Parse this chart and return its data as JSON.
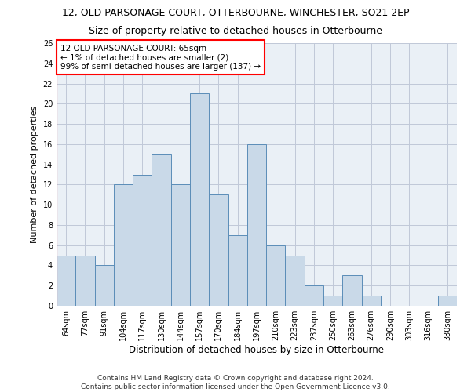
{
  "title1": "12, OLD PARSONAGE COURT, OTTERBOURNE, WINCHESTER, SO21 2EP",
  "title2": "Size of property relative to detached houses in Otterbourne",
  "xlabel": "Distribution of detached houses by size in Otterbourne",
  "ylabel": "Number of detached properties",
  "footer1": "Contains HM Land Registry data © Crown copyright and database right 2024.",
  "footer2": "Contains public sector information licensed under the Open Government Licence v3.0.",
  "annotation_line1": "12 OLD PARSONAGE COURT: 65sqm",
  "annotation_line2": "← 1% of detached houses are smaller (2)",
  "annotation_line3": "99% of semi-detached houses are larger (137) →",
  "bar_labels": [
    "64sqm",
    "77sqm",
    "91sqm",
    "104sqm",
    "117sqm",
    "130sqm",
    "144sqm",
    "157sqm",
    "170sqm",
    "184sqm",
    "197sqm",
    "210sqm",
    "223sqm",
    "237sqm",
    "250sqm",
    "263sqm",
    "276sqm",
    "290sqm",
    "303sqm",
    "316sqm",
    "330sqm"
  ],
  "bar_values": [
    5,
    5,
    4,
    12,
    13,
    15,
    12,
    21,
    11,
    7,
    16,
    6,
    5,
    2,
    1,
    3,
    1,
    0,
    0,
    0,
    1
  ],
  "bar_color": "#c9d9e8",
  "bar_edge_color": "#5b8db8",
  "highlight_color": "#ff0000",
  "ylim": [
    0,
    26
  ],
  "yticks": [
    0,
    2,
    4,
    6,
    8,
    10,
    12,
    14,
    16,
    18,
    20,
    22,
    24,
    26
  ],
  "annotation_box_color": "#ff0000",
  "grid_color": "#c0c8d8",
  "bg_color": "#eaf0f6",
  "title1_fontsize": 9,
  "title2_fontsize": 9,
  "xlabel_fontsize": 8.5,
  "ylabel_fontsize": 8,
  "tick_fontsize": 7,
  "annotation_fontsize": 7.5,
  "footer_fontsize": 6.5
}
